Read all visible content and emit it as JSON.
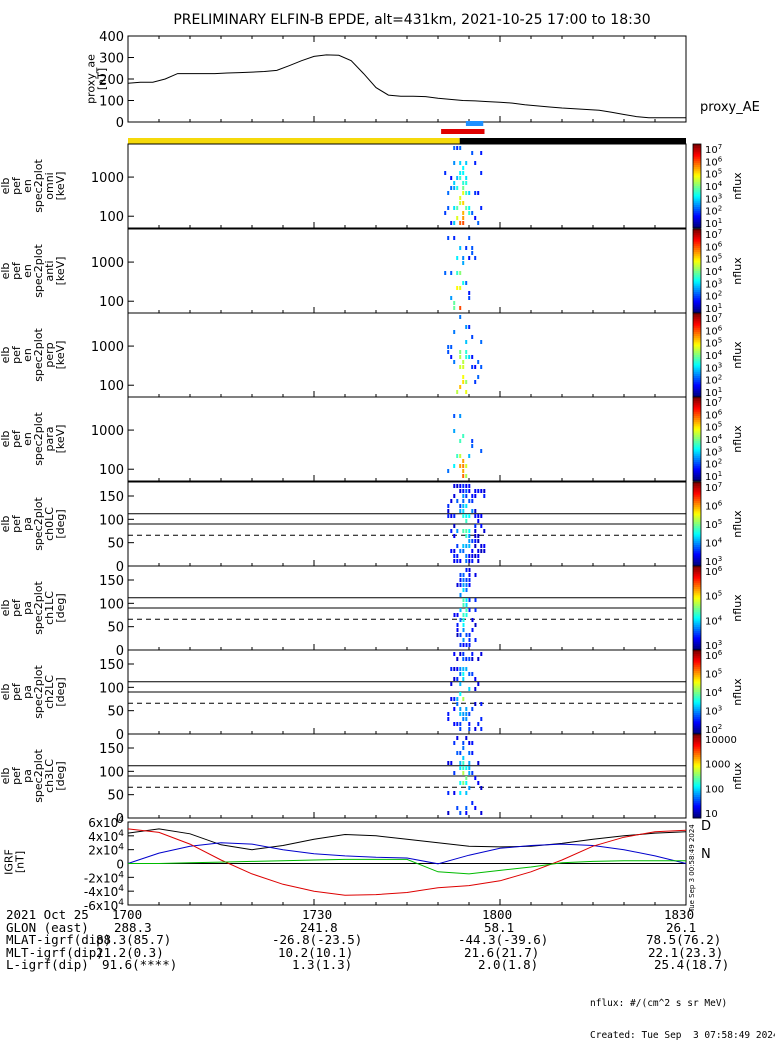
{
  "title": "PRELIMINARY ELFIN-B EPDE, alt=431km, 2021-10-25 17:00 to 18:30",
  "colors": {
    "ae_line": "#000000",
    "seg_yellow": "#f5d90a",
    "seg_black": "#000000",
    "seg_red": "#e00000",
    "seg_blue": "#1e90ff",
    "igrf_x": "#000000",
    "igrf_y": "#0000cc",
    "igrf_z": "#dd0000",
    "igrf_green": "#00bb00"
  },
  "colorbar_labels": {
    "nflux": "nflux",
    "exp_7_1": [
      "10^7",
      "10^6",
      "10^5",
      "10^4",
      "10^3",
      "10^2",
      "10^1"
    ],
    "exp_7_3": [
      "10^7",
      "10^6",
      "10^5",
      "10^4",
      "10^3"
    ],
    "exp_6_3": [
      "10^6",
      "10^5",
      "10^4",
      "10^3"
    ],
    "exp_6_2": [
      "10^6",
      "10^5",
      "10^4",
      "10^3",
      "10^2"
    ],
    "lin": [
      "10000",
      "1000",
      "100",
      "10"
    ]
  },
  "side_stamp": "Tue Sep  3 00:58:49 2024",
  "footer": {
    "rows": [
      {
        "label": "2021 Oct 25",
        "vals": [
          "1700",
          "1730",
          "1800",
          "1830"
        ]
      },
      {
        "label": "GLON (east)",
        "vals": [
          "288.3",
          "241.8",
          "58.1",
          "26.1"
        ]
      },
      {
        "label": "MLAT-igrf(dip)",
        "vals": [
          "88.3(85.7)",
          "-26.8(-23.5)",
          "-44.3(-39.6)",
          "78.5(76.2)"
        ]
      },
      {
        "label": "MLT-igrf(dip)",
        "vals": [
          "21.2(0.3)",
          "10.2(10.1)",
          "21.6(21.7)",
          "22.1(23.3)"
        ]
      },
      {
        "label": "L-igrf(dip)",
        "vals": [
          "91.6(****)",
          "1.3(1.3)",
          "2.0(1.8)",
          "25.4(18.7)"
        ]
      }
    ],
    "units_note": "nflux: #/(cm^2 s sr MeV)",
    "created": "Created: Tue Sep  3 07:58:49 2024"
  },
  "chart_data": [
    {
      "type": "line",
      "ylabel": "proxy_ae [nT]",
      "legend": "proxy_AE",
      "ylim": [
        0,
        400
      ],
      "yticks": [
        0,
        100,
        200,
        300,
        400
      ],
      "xlim": [
        0,
        90
      ],
      "x": [
        0,
        2,
        4,
        6,
        8,
        10,
        12,
        14,
        16,
        18,
        20,
        22,
        24,
        26,
        28,
        30,
        32,
        34,
        36,
        38,
        40,
        42,
        44,
        46,
        48,
        50,
        52,
        54,
        56,
        58,
        60,
        62,
        64,
        66,
        68,
        70,
        72,
        74,
        76,
        78,
        80,
        82,
        84,
        86,
        88,
        90
      ],
      "values": [
        180,
        185,
        185,
        200,
        225,
        225,
        225,
        225,
        228,
        230,
        232,
        235,
        240,
        262,
        285,
        305,
        312,
        310,
        285,
        225,
        160,
        125,
        120,
        120,
        118,
        110,
        105,
        100,
        98,
        95,
        92,
        88,
        80,
        75,
        70,
        65,
        62,
        58,
        55,
        45,
        35,
        25,
        20,
        20,
        20,
        20
      ]
    },
    {
      "type": "bar",
      "title": "science zone segment bars",
      "series": [
        {
          "name": "yellow",
          "start": 0,
          "end": 53.5
        },
        {
          "name": "black",
          "start": 53.5,
          "end": 90
        },
        {
          "name": "red",
          "start": 50.5,
          "end": 57.5
        },
        {
          "name": "blue",
          "start": 54.5,
          "end": 57.3
        }
      ]
    },
    {
      "type": "heatmap",
      "panels": [
        {
          "ylabel": "elb pef en spec2plot omni [keV]",
          "ylim_log": [
            50,
            7000
          ],
          "yticks": [
            100,
            1000
          ],
          "burst_x": [
            51,
            57
          ],
          "clim_exp": [
            1,
            7
          ]
        },
        {
          "ylabel": "elb pef en spec2plot anti [keV]",
          "ylim_log": [
            50,
            7000
          ],
          "yticks": [
            100,
            1000
          ],
          "burst_x": [
            51,
            56
          ],
          "clim_exp": [
            1,
            7
          ]
        },
        {
          "ylabel": "elb pef en spec2plot perp [keV]",
          "ylim_log": [
            50,
            7000
          ],
          "yticks": [
            100,
            1000
          ],
          "burst_x": [
            51,
            57
          ],
          "clim_exp": [
            1,
            7
          ]
        },
        {
          "ylabel": "elb pef en spec2plot para [keV]",
          "ylim_log": [
            50,
            7000
          ],
          "yticks": [
            100,
            1000
          ],
          "burst_x": [
            51,
            57
          ],
          "clim_exp": [
            1,
            7
          ]
        },
        {
          "ylabel": "elb pef pa spec2plot ch0LC [deg]",
          "ylim": [
            0,
            180
          ],
          "yticks": [
            0,
            50,
            100,
            150
          ],
          "burst_x": [
            51.5,
            57.5
          ],
          "clim_exp": [
            3,
            7
          ]
        },
        {
          "ylabel": "elb pef pa spec2plot ch1LC [deg]",
          "ylim": [
            0,
            180
          ],
          "yticks": [
            0,
            50,
            100,
            150
          ],
          "burst_x": [
            52.5,
            56
          ],
          "clim_exp": [
            3,
            6
          ]
        },
        {
          "ylabel": "elb pef pa spec2plot ch2LC [deg]",
          "ylim": [
            0,
            180
          ],
          "yticks": [
            0,
            50,
            100,
            150
          ],
          "burst_x": [
            51.5,
            57
          ],
          "clim_exp": [
            2,
            6
          ]
        },
        {
          "ylabel": "elb pef pa spec2plot ch3LC [deg]",
          "ylim": [
            0,
            180
          ],
          "yticks": [
            0,
            50,
            100,
            150
          ],
          "burst_x": [
            51.5,
            57
          ],
          "clim_exp": [
            1,
            4
          ]
        }
      ],
      "pa_reference_lines": {
        "solid": [
          112,
          90
        ],
        "dashed": 66
      }
    },
    {
      "type": "line",
      "ylabel": "IGRF [nT]",
      "ylim": [
        -60000,
        60000
      ],
      "yticks": [
        -60000,
        -40000,
        -20000,
        0,
        20000,
        40000,
        60000
      ],
      "ytick_labels": [
        "-6x10^4",
        "-4x10^4",
        "-2x10^4",
        "0",
        "2x10^4",
        "4x10^4",
        "6x10^4"
      ],
      "legend": [
        "D",
        "N"
      ],
      "x": [
        0,
        5,
        10,
        15,
        20,
        25,
        30,
        35,
        40,
        45,
        50,
        55,
        60,
        65,
        70,
        75,
        80,
        85,
        90
      ],
      "series": [
        {
          "values": [
            44000,
            50000,
            43000,
            27000,
            20000,
            26000,
            35000,
            42000,
            40000,
            35000,
            30000,
            25000,
            24000,
            25000,
            29000,
            35000,
            40000,
            44000,
            46000
          ]
        },
        {
          "values": [
            0,
            15000,
            25000,
            30000,
            28000,
            20000,
            14000,
            11000,
            9000,
            8000,
            -500,
            12000,
            22000,
            26000,
            28000,
            26000,
            20000,
            11000,
            0
          ]
        },
        {
          "values": [
            50000,
            45000,
            28000,
            5000,
            -15000,
            -30000,
            -40000,
            -46000,
            -45000,
            -42000,
            -35000,
            -32000,
            -25000,
            -12000,
            5000,
            25000,
            38000,
            46000,
            48000
          ]
        },
        {
          "values": [
            0,
            0,
            1000,
            2000,
            3000,
            4000,
            5000,
            6000,
            6000,
            6000,
            -12000,
            -15000,
            -10000,
            -5000,
            1000,
            3000,
            4000,
            4000,
            4000
          ]
        }
      ]
    }
  ]
}
